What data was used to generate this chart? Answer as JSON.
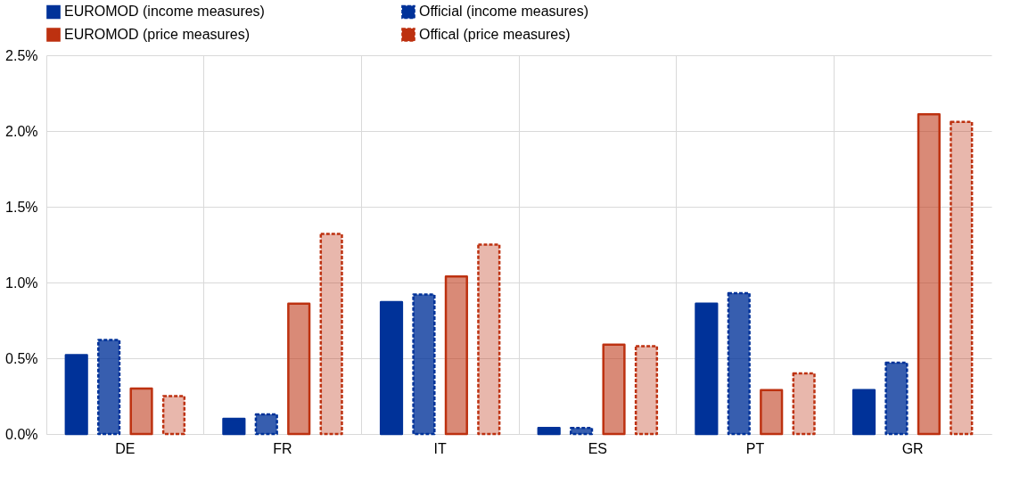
{
  "chart_data": {
    "type": "bar",
    "categories": [
      "DE",
      "FR",
      "IT",
      "ES",
      "PT",
      "GR"
    ],
    "series": [
      {
        "name": "EUROMOD (income measures)",
        "color": "#003299",
        "line_style": "solid",
        "values": [
          0.52,
          0.1,
          0.87,
          0.04,
          0.86,
          0.29
        ]
      },
      {
        "name": "Official (income measures)",
        "color": "#003299",
        "line_style": "dashed",
        "values": [
          0.62,
          0.13,
          0.92,
          0.04,
          0.93,
          0.47
        ]
      },
      {
        "name": "EUROMOD (price measures)",
        "color": "#bd3110",
        "line_style": "solid",
        "values": [
          0.3,
          0.86,
          1.04,
          0.59,
          0.29,
          2.11
        ]
      },
      {
        "name": "Offical (price measures)",
        "color": "#bd3110",
        "line_style": "dashed",
        "values": [
          0.25,
          1.32,
          1.25,
          0.58,
          0.4,
          2.06
        ]
      }
    ],
    "ylim": [
      0,
      2.5
    ],
    "yticks": [
      {
        "value": 0,
        "label": "0.0%"
      },
      {
        "value": 0.5,
        "label": "0.5%"
      },
      {
        "value": 1.0,
        "label": "1.0%"
      },
      {
        "value": 1.5,
        "label": "1.5%"
      },
      {
        "value": 2.0,
        "label": "2.0%"
      },
      {
        "value": 2.5,
        "label": "2.5%"
      }
    ],
    "grid": true,
    "legend": "top left"
  }
}
